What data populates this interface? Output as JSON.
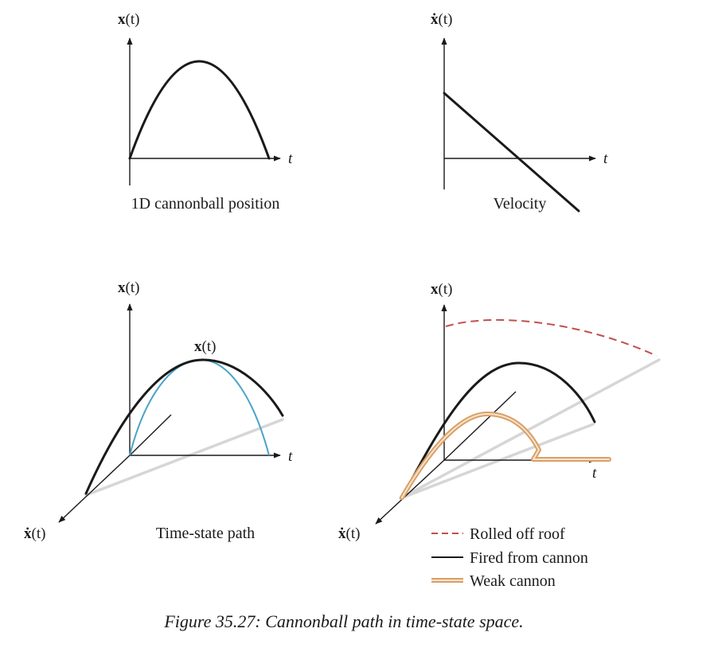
{
  "panels": {
    "position": {
      "y_axis_label": "x",
      "y_axis_arg": "(t)",
      "x_axis_label": "t",
      "caption": "1D cannonball position"
    },
    "velocity": {
      "y_axis_label": "ẋ",
      "y_axis_arg": "(t)",
      "x_axis_label": "t",
      "caption": "Velocity"
    },
    "time_state": {
      "vertical_axis_label": "x",
      "vertical_axis_arg": "(t)",
      "depth_axis_label": "ẋ",
      "depth_axis_arg": "(t)",
      "time_axis_label": "t",
      "curve_label": "x",
      "curve_label_arg": "(t)",
      "caption": "Time-state path"
    },
    "comparison": {
      "vertical_axis_label": "x",
      "vertical_axis_arg": "(t)",
      "depth_axis_label": "ẋ",
      "depth_axis_arg": "(t)",
      "time_axis_label": "t",
      "legend": [
        {
          "label": "Rolled off roof",
          "style": "dashed",
          "color": "#c0504d"
        },
        {
          "label": "Fired from cannon",
          "style": "solid",
          "color": "#1a1a1a"
        },
        {
          "label": "Weak cannon",
          "style": "double",
          "color": "#d9a066"
        }
      ]
    }
  },
  "figure_caption": "Figure 35.27: Cannonball path in time-state space."
}
